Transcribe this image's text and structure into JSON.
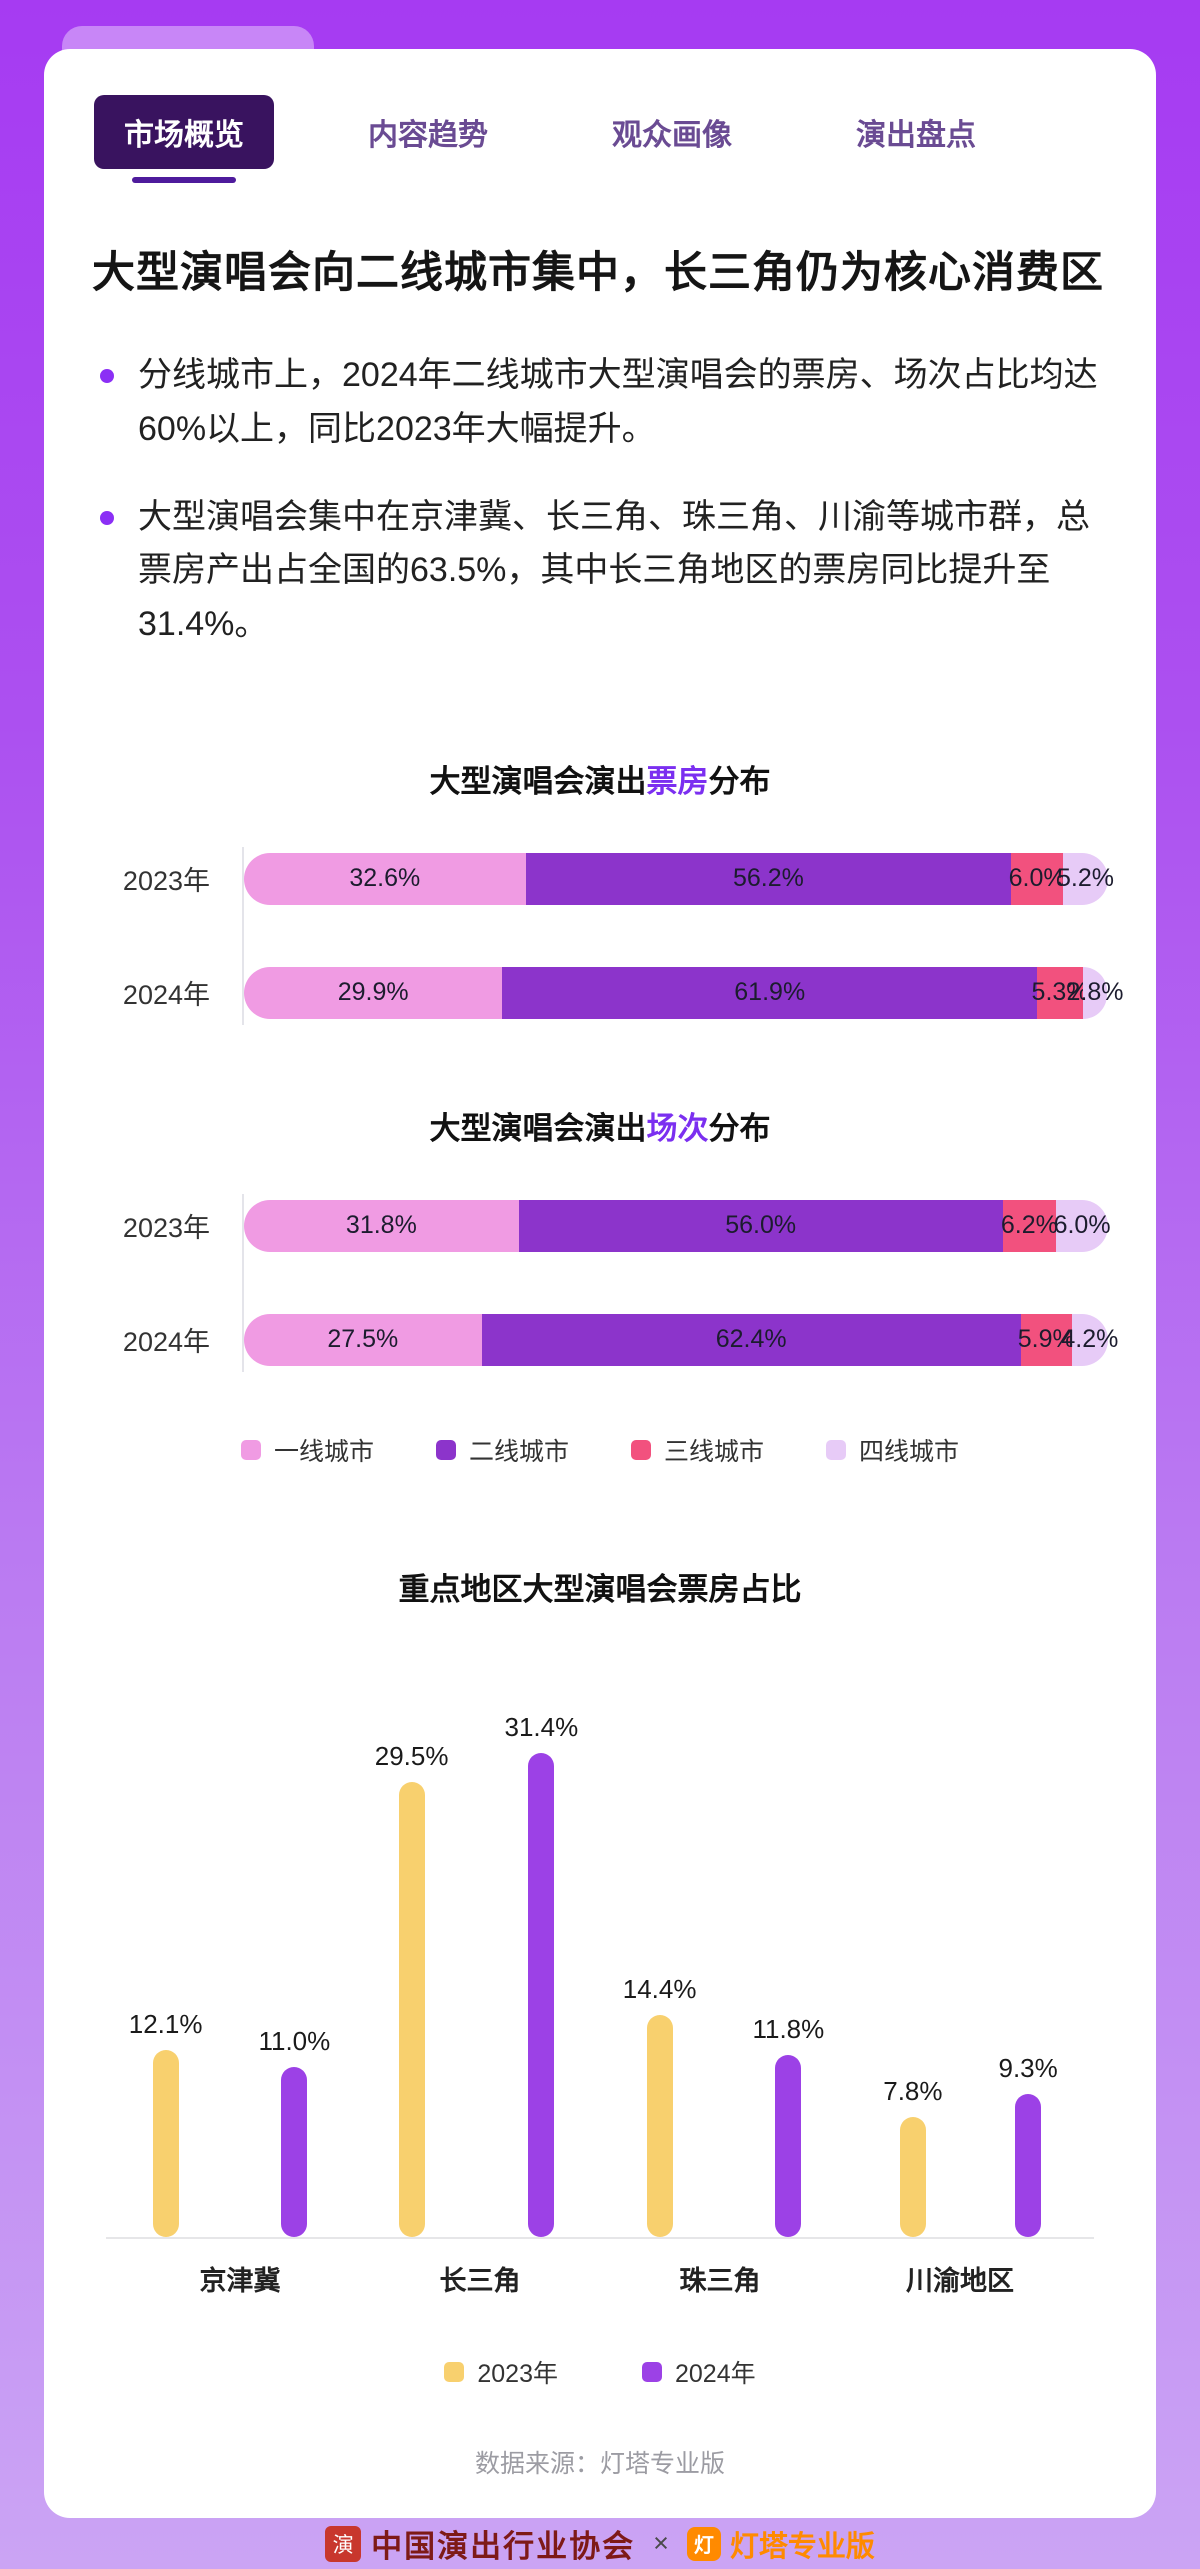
{
  "accent": "#7B2FF0",
  "tabs": [
    {
      "label": "市场概览",
      "active": true
    },
    {
      "label": "内容趋势",
      "active": false
    },
    {
      "label": "观众画像",
      "active": false
    },
    {
      "label": "演出盘点",
      "active": false
    }
  ],
  "headline": "大型演唱会向二线城市集中，长三角仍为核心消费区",
  "bullets": [
    "分线城市上，2024年二线城市大型演唱会的票房、场次占比均达60%以上，同比2023年大幅提升。",
    "大型演唱会集中在京津冀、长三角、珠三角、川渝等城市群，总票房产出占全国的63.5%，其中长三角地区的票房同比提升至31.4%。"
  ],
  "chart_data": [
    {
      "type": "bar",
      "variant": "horizontal_stacked",
      "title_parts": [
        "大型演唱会演出",
        "票房",
        "分布"
      ],
      "categories": [
        "2023年",
        "2024年"
      ],
      "series": [
        {
          "name": "一线城市",
          "color": "#F09BE3",
          "values": [
            32.6,
            29.9
          ]
        },
        {
          "name": "二线城市",
          "color": "#8C34CB",
          "values": [
            56.2,
            61.9
          ]
        },
        {
          "name": "三线城市",
          "color": "#F2517E",
          "values": [
            6.0,
            5.3
          ]
        },
        {
          "name": "四线城市",
          "color": "#E7CBF7",
          "values": [
            5.2,
            2.8
          ]
        }
      ],
      "xlim": [
        0,
        100
      ],
      "unit": "%"
    },
    {
      "type": "bar",
      "variant": "horizontal_stacked",
      "title_parts": [
        "大型演唱会演出",
        "场次",
        "分布"
      ],
      "categories": [
        "2023年",
        "2024年"
      ],
      "series": [
        {
          "name": "一线城市",
          "color": "#F09BE3",
          "values": [
            31.8,
            27.5
          ]
        },
        {
          "name": "二线城市",
          "color": "#8C34CB",
          "values": [
            56.0,
            62.4
          ]
        },
        {
          "name": "三线城市",
          "color": "#F2517E",
          "values": [
            6.2,
            5.9
          ]
        },
        {
          "name": "四线城市",
          "color": "#E7CBF7",
          "values": [
            6.0,
            4.2
          ]
        }
      ],
      "xlim": [
        0,
        100
      ],
      "unit": "%"
    },
    {
      "type": "bar",
      "variant": "grouped_vertical",
      "title": "重点地区大型演唱会票房占比",
      "categories": [
        "京津冀",
        "长三角",
        "珠三角",
        "川渝地区"
      ],
      "series": [
        {
          "name": "2023年",
          "color": "#F8D06E",
          "values": [
            12.1,
            29.5,
            14.4,
            7.8
          ]
        },
        {
          "name": "2024年",
          "color": "#9C41E6",
          "values": [
            11.0,
            31.4,
            11.8,
            9.3
          ]
        }
      ],
      "ylim": [
        0,
        35
      ],
      "unit": "%"
    }
  ],
  "source": "数据来源：灯塔专业版",
  "footer": {
    "association": "中国演出行业协会",
    "separator": "×",
    "brand": "灯塔专业版",
    "seal_glyph": "演",
    "brand_glyph": "灯"
  }
}
